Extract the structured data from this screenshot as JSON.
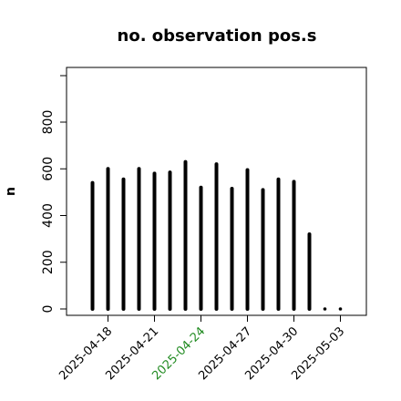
{
  "chart_data": {
    "type": "bar",
    "title": "no. observation pos.s",
    "xlabel": "",
    "ylabel": "n",
    "ylim": [
      0,
      1000
    ],
    "yticks": [
      0,
      200,
      400,
      600,
      800
    ],
    "grid": false,
    "x": [
      "2025-04-17",
      "2025-04-18",
      "2025-04-19",
      "2025-04-20",
      "2025-04-21",
      "2025-04-22",
      "2025-04-23",
      "2025-04-24",
      "2025-04-25",
      "2025-04-26",
      "2025-04-27",
      "2025-04-28",
      "2025-04-29",
      "2025-04-30",
      "2025-05-01",
      "2025-05-02",
      "2025-05-03"
    ],
    "values": [
      540,
      600,
      555,
      600,
      580,
      585,
      630,
      520,
      620,
      515,
      595,
      510,
      555,
      545,
      320,
      5,
      5
    ],
    "xtick_labels": [
      {
        "date": "2025-04-18",
        "label": "2025-04-18",
        "color": "#000000"
      },
      {
        "date": "2025-04-21",
        "label": "2025-04-21",
        "color": "#000000"
      },
      {
        "date": "2025-04-24",
        "label": "2025-04-24",
        "color": "#228B22"
      },
      {
        "date": "2025-04-27",
        "label": "2025-04-27",
        "color": "#000000"
      },
      {
        "date": "2025-04-30",
        "label": "2025-04-30",
        "color": "#000000"
      },
      {
        "date": "2025-05-03",
        "label": "2025-05-03",
        "color": "#000000"
      }
    ],
    "bar_color": "#000000"
  }
}
